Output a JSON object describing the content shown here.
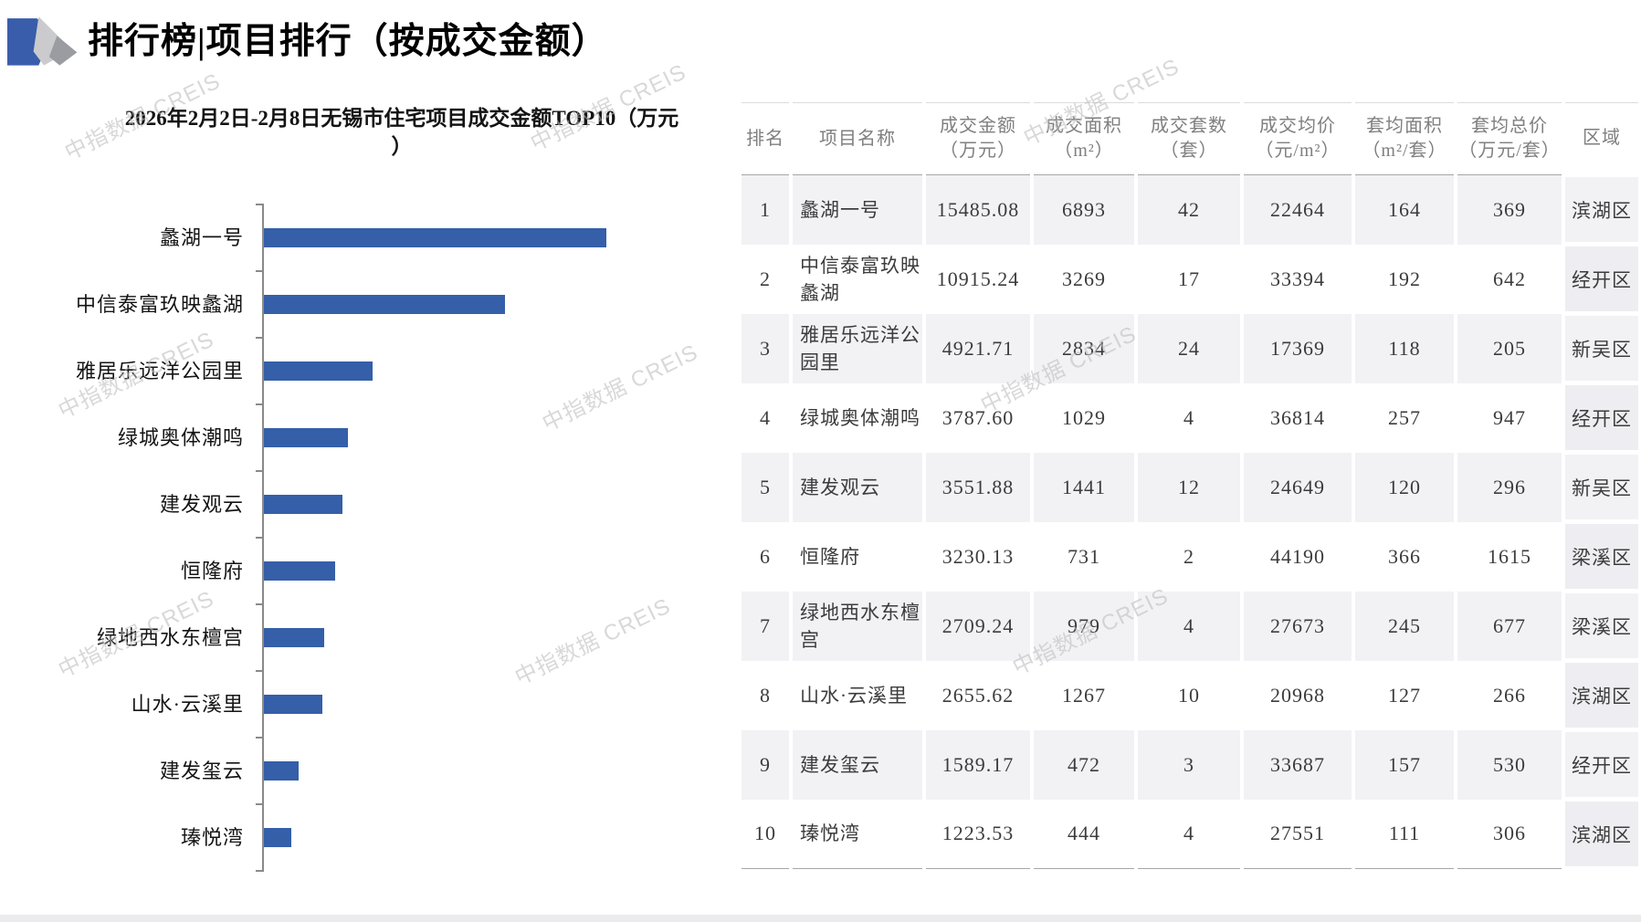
{
  "page": {
    "title": "排行榜|项目排行（按成交金额）",
    "watermark": "中指数据 CREIS"
  },
  "chart_data": {
    "type": "bar",
    "orientation": "horizontal",
    "title": "2026年2月2日-2月8日无锡市住宅项目成交金额TOP10（万元\n）",
    "categories": [
      "蠡湖一号",
      "中信泰富玖映蠡湖",
      "雅居乐远洋公园里",
      "绿城奥体潮鸣",
      "建发观云",
      "恒隆府",
      "绿地西水东檀宫",
      "山水·云溪里",
      "建发玺云",
      "瑧悦湾"
    ],
    "values": [
      15485.08,
      10915.24,
      4921.71,
      3787.6,
      3551.88,
      3230.13,
      2709.24,
      2655.62,
      1589.17,
      1223.53
    ],
    "xlabel": "",
    "ylabel": "",
    "value_axis_labels_visible": false,
    "grid": false,
    "legend": null,
    "bar_color": "#355fa8",
    "axis_color": "#8a8a8a"
  },
  "table": {
    "columns": [
      "排名",
      "项目名称",
      "成交金额\n（万元）",
      "成交面积\n（m²）",
      "成交套数\n（套）",
      "成交均价\n（元/m²）",
      "套均面积\n（m²/套）",
      "套均总价\n（万元/套）",
      "区域"
    ],
    "rows": [
      [
        "1",
        "蠡湖一号",
        "15485.08",
        "6893",
        "42",
        "22464",
        "164",
        "369",
        "滨湖区"
      ],
      [
        "2",
        "中信泰富玖映蠡湖",
        "10915.24",
        "3269",
        "17",
        "33394",
        "192",
        "642",
        "经开区"
      ],
      [
        "3",
        "雅居乐远洋公园里",
        "4921.71",
        "2834",
        "24",
        "17369",
        "118",
        "205",
        "新吴区"
      ],
      [
        "4",
        "绿城奥体潮鸣",
        "3787.60",
        "1029",
        "4",
        "36814",
        "257",
        "947",
        "经开区"
      ],
      [
        "5",
        "建发观云",
        "3551.88",
        "1441",
        "12",
        "24649",
        "120",
        "296",
        "新吴区"
      ],
      [
        "6",
        "恒隆府",
        "3230.13",
        "731",
        "2",
        "44190",
        "366",
        "1615",
        "梁溪区"
      ],
      [
        "7",
        "绿地西水东檀宫",
        "2709.24",
        "979",
        "4",
        "27673",
        "245",
        "677",
        "梁溪区"
      ],
      [
        "8",
        "山水·云溪里",
        "2655.62",
        "1267",
        "10",
        "20968",
        "127",
        "266",
        "滨湖区"
      ],
      [
        "9",
        "建发玺云",
        "1589.17",
        "472",
        "3",
        "33687",
        "157",
        "530",
        "经开区"
      ],
      [
        "10",
        "瑧悦湾",
        "1223.53",
        "444",
        "4",
        "27551",
        "111",
        "306",
        "滨湖区"
      ]
    ]
  }
}
